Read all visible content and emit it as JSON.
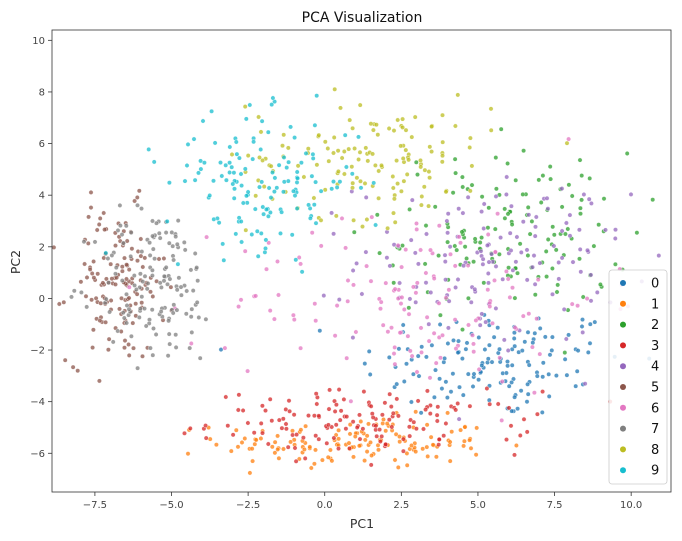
{
  "chart_data": {
    "type": "scatter",
    "title": "PCA Visualization",
    "xlabel": "PC1",
    "ylabel": "PC2",
    "xlim": [
      -8.9,
      11.3
    ],
    "ylim": [
      -7.5,
      10.4
    ],
    "xticks": [
      -7.5,
      -5.0,
      -2.5,
      0.0,
      2.5,
      5.0,
      7.5,
      10.0
    ],
    "xtick_labels": [
      "−7.5",
      "−5.0",
      "−2.5",
      "0.0",
      "2.5",
      "5.0",
      "7.5",
      "10.0"
    ],
    "yticks": [
      -6,
      -4,
      -2,
      0,
      2,
      4,
      6,
      8,
      10
    ],
    "ytick_labels": [
      "−6",
      "−4",
      "−2",
      "0",
      "2",
      "4",
      "6",
      "8",
      "10"
    ],
    "grid": false,
    "legend_position": "lower-right",
    "series": [
      {
        "name": "0",
        "color": "#1f77b4",
        "center": [
          5.5,
          -2.5
        ],
        "spread": [
          2.2,
          1.1
        ]
      },
      {
        "name": "1",
        "color": "#ff7f0e",
        "center": [
          1.0,
          -5.6
        ],
        "spread": [
          2.2,
          0.5
        ]
      },
      {
        "name": "2",
        "color": "#2ca02c",
        "center": [
          6.0,
          2.5
        ],
        "spread": [
          2.0,
          1.6
        ]
      },
      {
        "name": "3",
        "color": "#d62728",
        "center": [
          1.5,
          -4.8
        ],
        "spread": [
          2.6,
          0.6
        ]
      },
      {
        "name": "4",
        "color": "#9467bd",
        "center": [
          5.5,
          1.5
        ],
        "spread": [
          2.2,
          1.6
        ]
      },
      {
        "name": "5",
        "color": "#8c564b",
        "center": [
          -6.8,
          0.5
        ],
        "spread": [
          0.8,
          1.5
        ]
      },
      {
        "name": "6",
        "color": "#e377c2",
        "center": [
          3.0,
          0.0
        ],
        "spread": [
          3.0,
          1.8
        ]
      },
      {
        "name": "7",
        "color": "#7f7f7f",
        "center": [
          -5.5,
          0.5
        ],
        "spread": [
          1.0,
          1.5
        ]
      },
      {
        "name": "8",
        "color": "#bcbd22",
        "center": [
          1.5,
          5.5
        ],
        "spread": [
          2.0,
          1.2
        ]
      },
      {
        "name": "9",
        "color": "#17becf",
        "center": [
          -2.0,
          4.5
        ],
        "spread": [
          1.6,
          1.3
        ]
      }
    ]
  }
}
